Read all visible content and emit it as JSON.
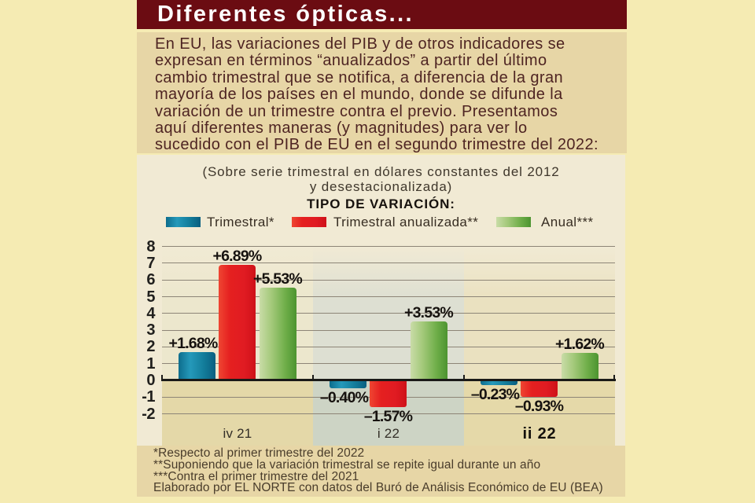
{
  "page": {
    "background": "#f5ebb3"
  },
  "header": {
    "title": "Diferentes ópticas...",
    "background": "#6b0c12",
    "text_color": "#ffffff"
  },
  "intro": {
    "background": "#e7d6a6",
    "text_color": "#4e2422",
    "lines": [
      "En EU, las variaciones del PIB y de otros indicadores se",
      "expresan en términos “anualizados” a partir del último",
      "cambio trimestral que se notifica, a diferencia de la gran",
      "mayoría de los países en el mundo, donde se difunde la",
      "variación de un trimestre contra el previo. Presentamos",
      "aquí diferentes maneras (y magnitudes) para ver lo",
      "sucedido con el PIB de EU en el segundo trimestre del 2022:"
    ]
  },
  "chart_panel": {
    "background": "#f1ead4",
    "subtitle_lines": [
      "(Sobre serie trimestral en dólares constantes del 2012",
      "y desestacionalizada)"
    ],
    "legend_title": "TIPO DE VARIACIÓN:"
  },
  "chart_data": {
    "type": "bar",
    "title": "TIPO DE VARIACIÓN:",
    "subtitle": "(Sobre serie trimestral en dólares constantes del 2012 y desestacionalizada)",
    "categories": [
      {
        "label": "iv 21",
        "bold": false
      },
      {
        "label": "i 22",
        "bold": false
      },
      {
        "label": "ii 22",
        "bold": true
      }
    ],
    "series": [
      {
        "name": "Trimestral*",
        "color": "#1488a9",
        "values": [
          1.68,
          -0.4,
          -0.23
        ],
        "labels": [
          "+1.68%",
          "–0.40%",
          "–0.23%"
        ]
      },
      {
        "name": "Trimestral anualizada**",
        "color": "#e01e24",
        "values": [
          6.89,
          -1.57,
          -0.93
        ],
        "labels": [
          "+6.89%",
          "–1.57%",
          "–0.93%"
        ]
      },
      {
        "name": "Anual***",
        "color": "#5d9e38",
        "values": [
          5.53,
          3.53,
          1.62
        ],
        "labels": [
          "+5.53%",
          "+3.53%",
          "+1.62%"
        ]
      }
    ],
    "ylim": [
      -2,
      8
    ],
    "yticks": [
      8,
      7,
      6,
      5,
      4,
      3,
      2,
      1,
      0,
      -1,
      -2
    ],
    "grid": true,
    "legend_position": "top",
    "gridline_color": "#8d8577",
    "axis_color": "#1a1a18",
    "column_tints": [
      {
        "above": "#ece7cd",
        "below": "#e4d8a8"
      },
      {
        "above": "#dddfd2",
        "below": "#cdd4c5"
      },
      {
        "above": "#eae1c0",
        "below": "#e5d9a9"
      }
    ]
  },
  "footnotes": {
    "background": "#e7d6a6",
    "text_color": "#493c2b",
    "lines": [
      "*Respecto al primer trimestre del 2022",
      "**Suponiendo que la variación trimestral se repite igual durante un año",
      "***Contra el primer trimestre del 2021",
      "Elaborado por EL NORTE con datos del Buró de Análisis Económico de EU (BEA)"
    ]
  }
}
